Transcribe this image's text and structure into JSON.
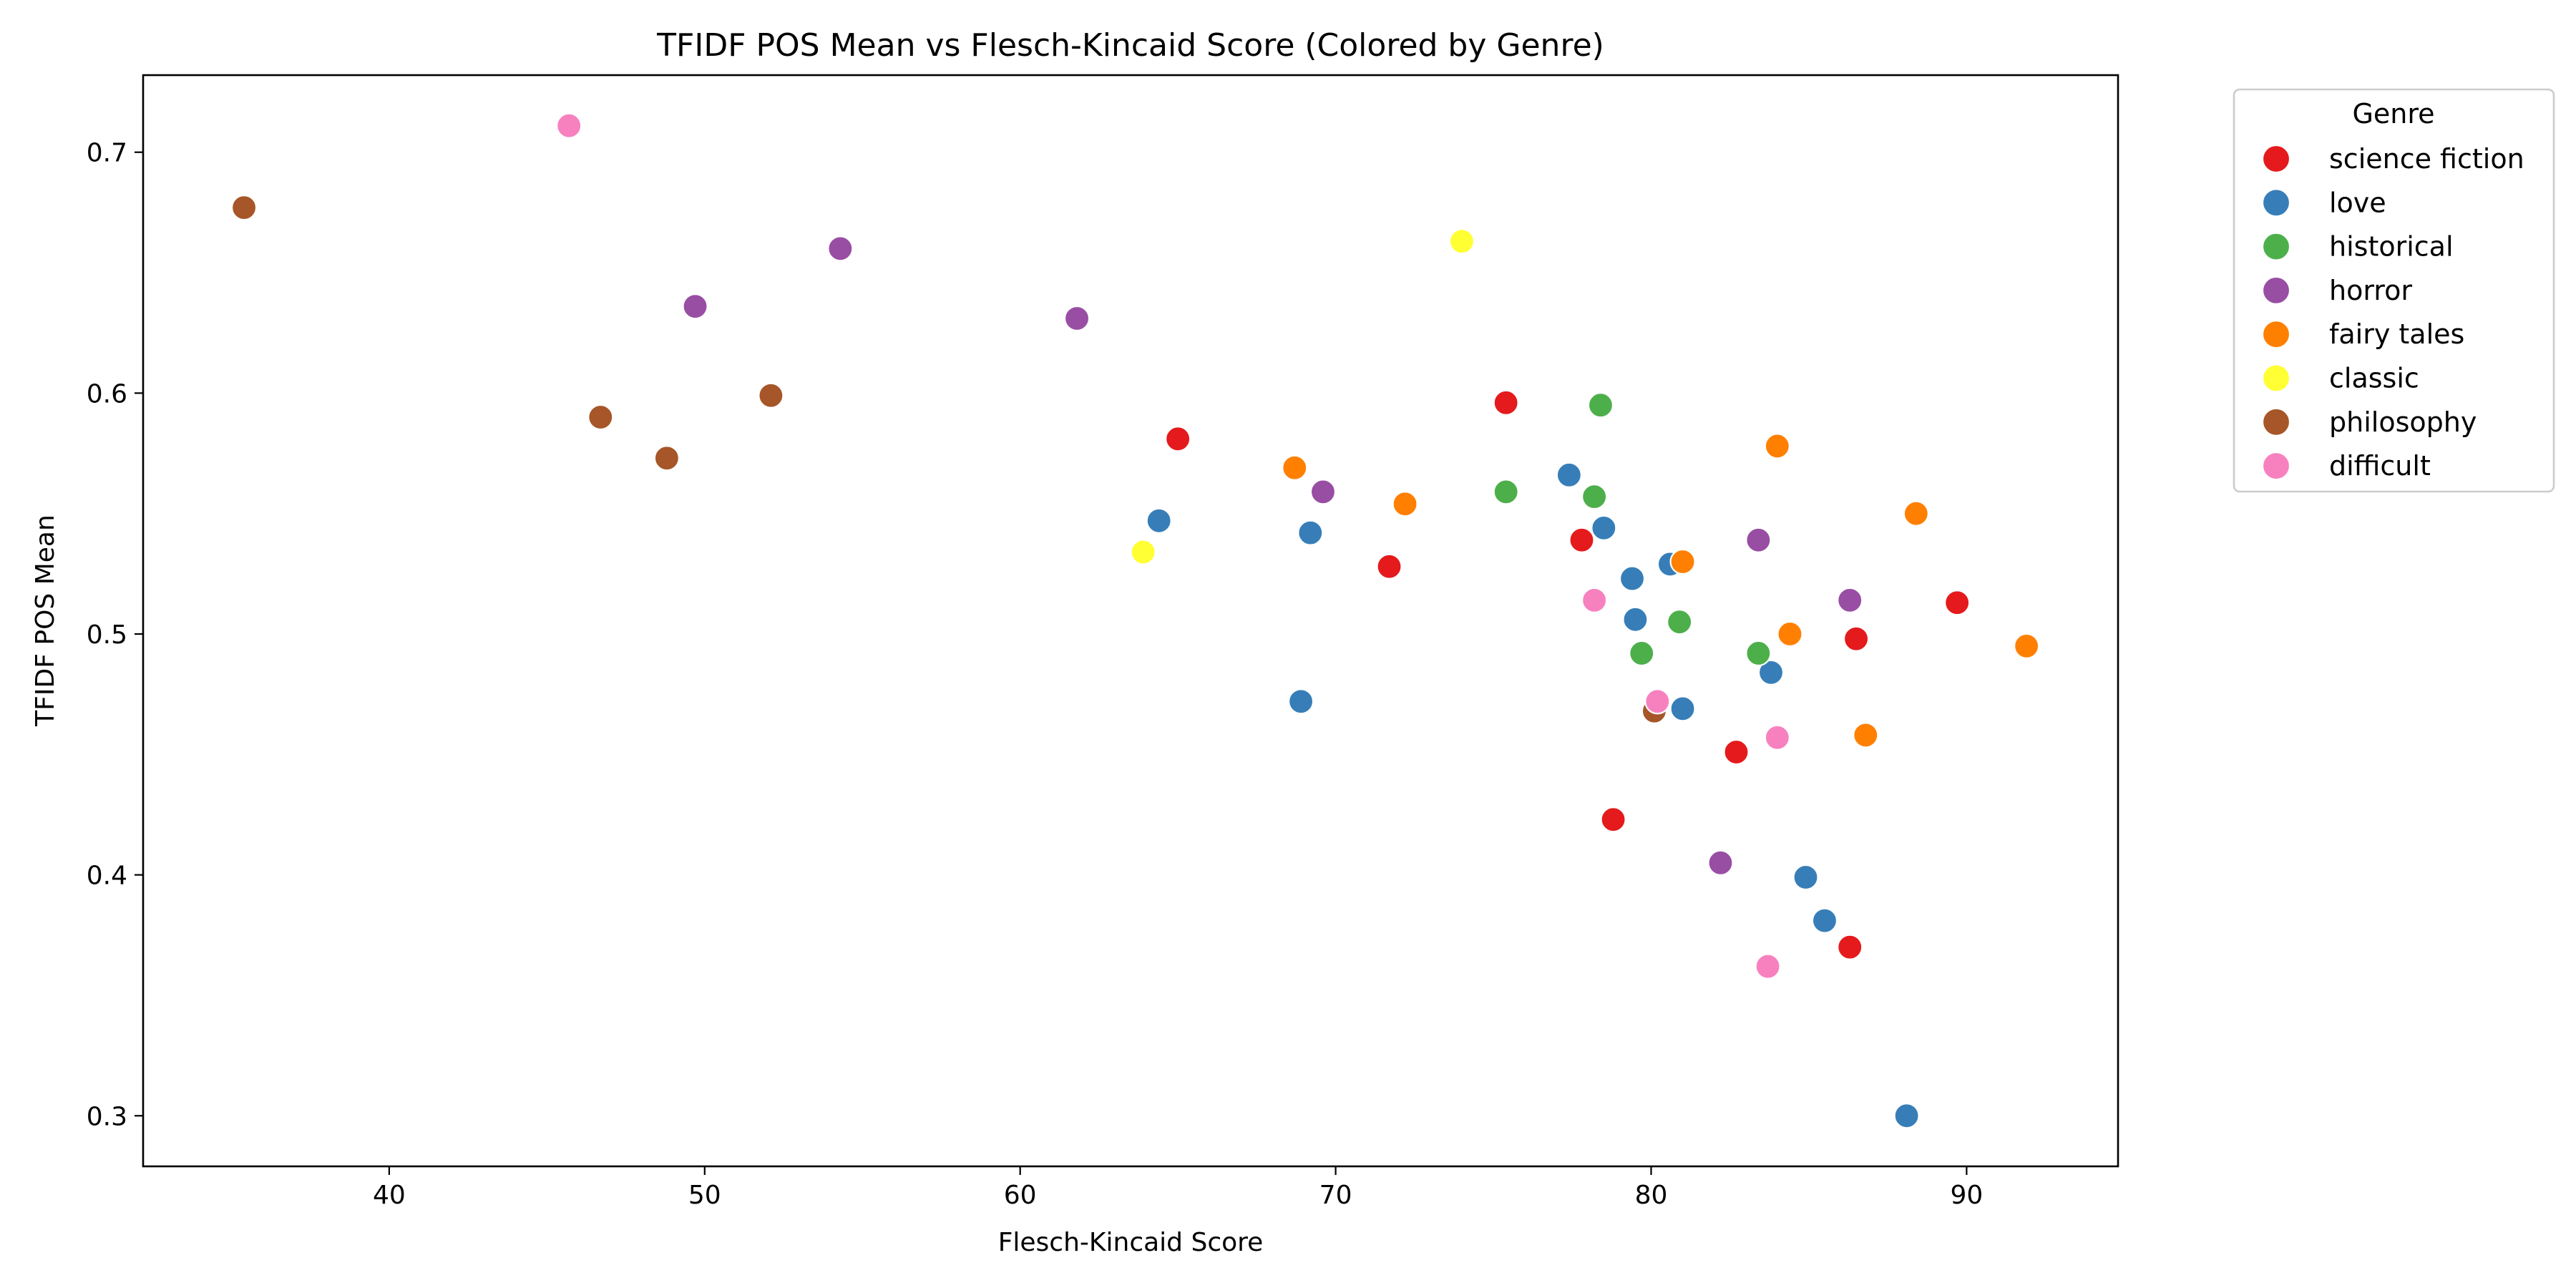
{
  "chart_data": {
    "type": "scatter",
    "title": "TFIDF POS Mean vs Flesch-Kincaid Score (Colored by Genre)",
    "xlabel": "Flesch-Kincaid Score",
    "ylabel": "TFIDF POS Mean",
    "xlim": [
      32.2,
      94.8
    ],
    "ylim": [
      0.279,
      0.732
    ],
    "xticks": [
      40,
      50,
      60,
      70,
      80,
      90
    ],
    "yticks": [
      0.3,
      0.4,
      0.5,
      0.6,
      0.7
    ],
    "grid": false,
    "legend": {
      "title": "Genre",
      "placement": "outside-top-right"
    },
    "series": [
      {
        "name": "science fiction",
        "color": "#e41a1c",
        "points": [
          [
            65.0,
            0.581
          ],
          [
            75.4,
            0.596
          ],
          [
            71.7,
            0.528
          ],
          [
            77.8,
            0.539
          ],
          [
            78.8,
            0.423
          ],
          [
            82.7,
            0.451
          ],
          [
            86.5,
            0.498
          ],
          [
            89.7,
            0.513
          ],
          [
            86.3,
            0.37
          ]
        ]
      },
      {
        "name": "love",
        "color": "#377eb8",
        "points": [
          [
            64.4,
            0.547
          ],
          [
            69.2,
            0.542
          ],
          [
            68.9,
            0.472
          ],
          [
            77.4,
            0.566
          ],
          [
            78.5,
            0.544
          ],
          [
            79.4,
            0.523
          ],
          [
            79.5,
            0.506
          ],
          [
            80.6,
            0.529
          ],
          [
            81.0,
            0.469
          ],
          [
            83.8,
            0.484
          ],
          [
            84.9,
            0.399
          ],
          [
            85.5,
            0.381
          ],
          [
            88.1,
            0.3
          ]
        ]
      },
      {
        "name": "historical",
        "color": "#4daf4a",
        "points": [
          [
            75.4,
            0.559
          ],
          [
            78.4,
            0.595
          ],
          [
            78.2,
            0.557
          ],
          [
            79.7,
            0.492
          ],
          [
            80.9,
            0.505
          ],
          [
            83.4,
            0.492
          ]
        ]
      },
      {
        "name": "horror",
        "color": "#984ea3",
        "points": [
          [
            49.7,
            0.636
          ],
          [
            54.3,
            0.66
          ],
          [
            61.8,
            0.631
          ],
          [
            69.6,
            0.559
          ],
          [
            83.4,
            0.539
          ],
          [
            86.3,
            0.514
          ],
          [
            82.2,
            0.405
          ]
        ]
      },
      {
        "name": "fairy tales",
        "color": "#ff7f00",
        "points": [
          [
            68.7,
            0.569
          ],
          [
            72.2,
            0.554
          ],
          [
            81.0,
            0.53
          ],
          [
            84.0,
            0.578
          ],
          [
            84.4,
            0.5
          ],
          [
            88.4,
            0.55
          ],
          [
            86.8,
            0.458
          ],
          [
            91.9,
            0.495
          ]
        ]
      },
      {
        "name": "classic",
        "color": "#ffff33",
        "points": [
          [
            63.9,
            0.534
          ],
          [
            74.0,
            0.663
          ]
        ]
      },
      {
        "name": "philosophy",
        "color": "#a65628",
        "points": [
          [
            35.4,
            0.677
          ],
          [
            46.7,
            0.59
          ],
          [
            48.8,
            0.573
          ],
          [
            52.1,
            0.599
          ],
          [
            80.1,
            0.468
          ]
        ]
      },
      {
        "name": "difficult",
        "color": "#f781bf",
        "points": [
          [
            45.7,
            0.711
          ],
          [
            78.2,
            0.514
          ],
          [
            80.2,
            0.472
          ],
          [
            84.0,
            0.457
          ],
          [
            83.7,
            0.362
          ]
        ]
      }
    ]
  }
}
